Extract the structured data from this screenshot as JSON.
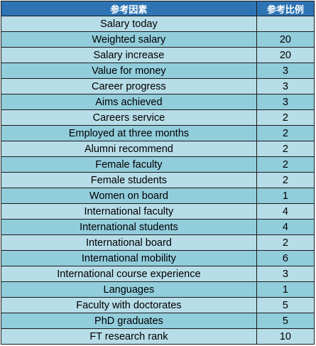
{
  "header": {
    "factor": "参考因素",
    "weight": "参考比例"
  },
  "colors": {
    "header_bg": "#2e74b5",
    "row_light": "#b7dde8",
    "row_dark": "#92cddc"
  },
  "rows": [
    {
      "factor": "Salary today",
      "weight": ""
    },
    {
      "factor": "Weighted salary",
      "weight": "20"
    },
    {
      "factor": "Salary increase",
      "weight": "20"
    },
    {
      "factor": "Value for money",
      "weight": "3"
    },
    {
      "factor": "Career progress",
      "weight": "3"
    },
    {
      "factor": "Aims achieved",
      "weight": "3"
    },
    {
      "factor": "Careers service",
      "weight": "2"
    },
    {
      "factor": "Employed at three months",
      "weight": "2"
    },
    {
      "factor": "Alumni recommend",
      "weight": "2"
    },
    {
      "factor": "Female faculty",
      "weight": "2"
    },
    {
      "factor": "Female students",
      "weight": "2"
    },
    {
      "factor": "Women on board",
      "weight": "1"
    },
    {
      "factor": "International faculty",
      "weight": "4"
    },
    {
      "factor": "International students",
      "weight": "4"
    },
    {
      "factor": "International board",
      "weight": "2"
    },
    {
      "factor": "International mobility",
      "weight": "6"
    },
    {
      "factor": "International course experience",
      "weight": "3"
    },
    {
      "factor": "Languages",
      "weight": "1"
    },
    {
      "factor": "Faculty with doctorates",
      "weight": "5"
    },
    {
      "factor": "PhD graduates",
      "weight": "5"
    },
    {
      "factor": "FT research rank",
      "weight": "10"
    }
  ]
}
